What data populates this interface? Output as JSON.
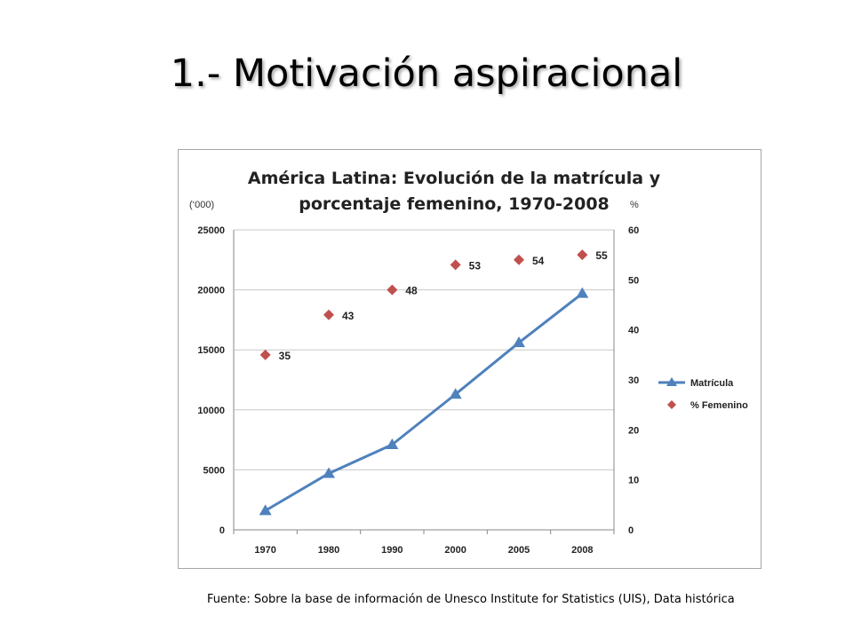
{
  "slide": {
    "title": "1.- Motivación aspiracional",
    "source": "Fuente: Sobre la base de información de Unesco Institute for Statistics (UIS), Data histórica"
  },
  "chart_data": {
    "type": "line",
    "title_line1": "América Latina: Evolución de la matrícula y",
    "title_line2": "porcentaje femenino, 1970-2008",
    "ylabel_left": "(‘000)",
    "ylabel_right": "%",
    "categories": [
      "1970",
      "1980",
      "1990",
      "2000",
      "2005",
      "2008"
    ],
    "ylim_left": [
      0,
      25000
    ],
    "yticks_left": [
      0,
      5000,
      10000,
      15000,
      20000,
      25000
    ],
    "ylim_right": [
      0,
      60
    ],
    "yticks_right": [
      0,
      10,
      20,
      30,
      40,
      50,
      60
    ],
    "grid": true,
    "legend_position": "right",
    "series": [
      {
        "name": "Matrícula",
        "axis": "left",
        "kind": "line-triangle",
        "color": "#4f81bd",
        "values": [
          1600,
          4700,
          7100,
          11300,
          15600,
          19700
        ]
      },
      {
        "name": "% Femenino",
        "axis": "right",
        "kind": "diamond",
        "color": "#c0504d",
        "values": [
          35,
          43,
          48,
          53,
          54,
          55
        ],
        "data_labels": [
          "35",
          "43",
          "48",
          "53",
          "54",
          "55"
        ]
      }
    ]
  }
}
